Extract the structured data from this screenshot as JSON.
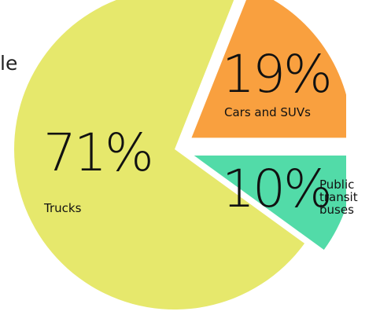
{
  "chart_data": {
    "type": "pie",
    "title": "le",
    "categories": [
      "Cars and SUVs",
      "Public transit buses",
      "Trucks"
    ],
    "values": [
      19,
      10,
      71
    ],
    "value_labels": [
      "19%",
      "10%",
      "71%"
    ],
    "colors": [
      "#f9a03f",
      "#52dba8",
      "#e6e86c"
    ]
  }
}
